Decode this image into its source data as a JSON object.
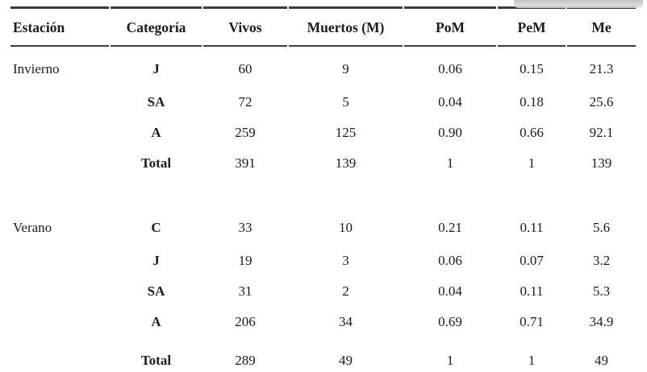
{
  "page": {
    "background": "#ffffff",
    "rule_color": "#3d3d3d",
    "text_color": "#1c1c1c",
    "scrollbar_color": "#c9c9c9"
  },
  "table": {
    "columns": [
      {
        "key": "estacion",
        "label": "Estación"
      },
      {
        "key": "categoria",
        "label": "Categoría"
      },
      {
        "key": "vivos",
        "label": "Vivos"
      },
      {
        "key": "muertos",
        "label": "Muertos (M)"
      },
      {
        "key": "pom",
        "label": "PoM"
      },
      {
        "key": "pem",
        "label": "PeM"
      },
      {
        "key": "me",
        "label": "Me"
      }
    ],
    "sections": [
      {
        "station": "Invierno",
        "rows": [
          {
            "categoria": "J",
            "vivos": "60",
            "muertos": "9",
            "pom": "0.06",
            "pem": "0.15",
            "me": "21.3"
          },
          {
            "categoria": "SA",
            "vivos": "72",
            "muertos": "5",
            "pom": "0.04",
            "pem": "0.18",
            "me": "25.6"
          },
          {
            "categoria": "A",
            "vivos": "259",
            "muertos": "125",
            "pom": "0.90",
            "pem": "0.66",
            "me": "92.1"
          },
          {
            "categoria": "Total",
            "vivos": "391",
            "muertos": "139",
            "pom": "1",
            "pem": "1",
            "me": "139",
            "is_total": true
          }
        ]
      },
      {
        "station": "Verano",
        "rows": [
          {
            "categoria": "C",
            "vivos": "33",
            "muertos": "10",
            "pom": "0.21",
            "pem": "0.11",
            "me": "5.6"
          },
          {
            "categoria": "J",
            "vivos": "19",
            "muertos": "3",
            "pom": "0.06",
            "pem": "0.07",
            "me": "3.2"
          },
          {
            "categoria": "SA",
            "vivos": "31",
            "muertos": "2",
            "pom": "0.04",
            "pem": "0.11",
            "me": "5.3"
          },
          {
            "categoria": "A",
            "vivos": "206",
            "muertos": "34",
            "pom": "0.69",
            "pem": "0.71",
            "me": "34.9"
          },
          {
            "categoria": "Total",
            "vivos": "289",
            "muertos": "49",
            "pom": "1",
            "pem": "1",
            "me": "49",
            "is_total": true,
            "gap_before": true
          }
        ]
      }
    ]
  },
  "chart_data": {
    "type": "table",
    "title": "",
    "columns": [
      "Estación",
      "Categoría",
      "Vivos",
      "Muertos (M)",
      "PoM",
      "PeM",
      "Me"
    ],
    "rows": [
      [
        "Invierno",
        "J",
        60,
        9,
        0.06,
        0.15,
        21.3
      ],
      [
        "Invierno",
        "SA",
        72,
        5,
        0.04,
        0.18,
        25.6
      ],
      [
        "Invierno",
        "A",
        259,
        125,
        0.9,
        0.66,
        92.1
      ],
      [
        "Invierno",
        "Total",
        391,
        139,
        1,
        1,
        139
      ],
      [
        "Verano",
        "C",
        33,
        10,
        0.21,
        0.11,
        5.6
      ],
      [
        "Verano",
        "J",
        19,
        3,
        0.06,
        0.07,
        3.2
      ],
      [
        "Verano",
        "SA",
        31,
        2,
        0.04,
        0.11,
        5.3
      ],
      [
        "Verano",
        "A",
        206,
        34,
        0.69,
        0.71,
        34.9
      ],
      [
        "Verano",
        "Total",
        289,
        49,
        1,
        1,
        49
      ]
    ]
  }
}
